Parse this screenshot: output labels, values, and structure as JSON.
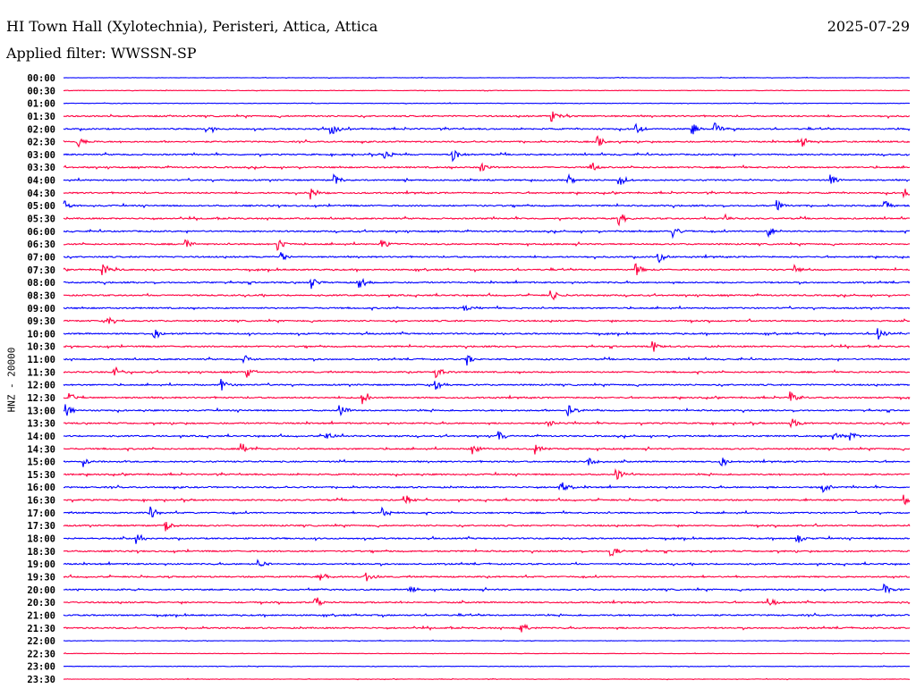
{
  "header": {
    "station": "HI Town Hall (Xylotechnia), Peristeri, Attica, Attica",
    "date": "2025-07-29",
    "filter": "Applied filter: WWSSN-SP"
  },
  "chart_data": {
    "type": "line",
    "title": "HI Town Hall (Xylotechnia), Peristeri, Attica, Attica",
    "ylabel": "HNZ - 20000",
    "xlabel": "",
    "row_minutes": 30,
    "colors": {
      "even": "#0000ff",
      "odd": "#ff0040"
    },
    "rows": [
      {
        "label": "00:00",
        "events": []
      },
      {
        "label": "00:30",
        "events": []
      },
      {
        "label": "01:00",
        "events": []
      },
      {
        "label": "01:30",
        "events": [
          17.3
        ]
      },
      {
        "label": "02:00",
        "events": [
          5.0,
          9.5,
          20.3,
          22.3,
          23.1
        ]
      },
      {
        "label": "02:30",
        "events": [
          0.5,
          18.9,
          26.2
        ]
      },
      {
        "label": "03:00",
        "events": [
          11.4,
          13.8
        ]
      },
      {
        "label": "03:30",
        "events": [
          14.8,
          18.7
        ]
      },
      {
        "label": "04:00",
        "events": [
          9.6,
          17.9,
          19.7,
          27.2
        ]
      },
      {
        "label": "04:30",
        "events": [
          8.8,
          29.8
        ]
      },
      {
        "label": "05:00",
        "events": [
          0.0,
          25.3,
          29.1
        ]
      },
      {
        "label": "05:30",
        "events": [
          19.7,
          23.4
        ]
      },
      {
        "label": "06:00",
        "events": [
          21.6,
          25.0
        ]
      },
      {
        "label": "06:30",
        "events": [
          4.3,
          7.6,
          11.3
        ]
      },
      {
        "label": "07:00",
        "events": [
          7.7,
          21.1
        ]
      },
      {
        "label": "07:30",
        "events": [
          1.4,
          20.3,
          25.9
        ]
      },
      {
        "label": "08:00",
        "events": [
          8.8,
          10.5
        ]
      },
      {
        "label": "08:30",
        "events": [
          17.3
        ]
      },
      {
        "label": "09:00",
        "events": [
          14.2
        ]
      },
      {
        "label": "09:30",
        "events": [
          1.6
        ]
      },
      {
        "label": "10:00",
        "events": [
          3.2,
          28.9
        ]
      },
      {
        "label": "10:30",
        "events": [
          20.9
        ]
      },
      {
        "label": "11:00",
        "events": [
          6.4,
          14.3
        ]
      },
      {
        "label": "11:30",
        "events": [
          1.8,
          6.5,
          13.2
        ]
      },
      {
        "label": "12:00",
        "events": [
          5.6,
          13.2
        ]
      },
      {
        "label": "12:30",
        "events": [
          0.2,
          10.6,
          25.8
        ]
      },
      {
        "label": "13:00",
        "events": [
          0.1,
          9.8,
          17.9
        ]
      },
      {
        "label": "13:30",
        "events": [
          17.1,
          25.8
        ]
      },
      {
        "label": "14:00",
        "events": [
          9.3,
          15.4,
          27.3,
          27.9
        ]
      },
      {
        "label": "14:30",
        "events": [
          6.3,
          14.5,
          16.7
        ]
      },
      {
        "label": "15:00",
        "events": [
          0.7,
          18.6,
          23.3
        ]
      },
      {
        "label": "15:30",
        "events": [
          19.6
        ]
      },
      {
        "label": "16:00",
        "events": [
          17.6,
          26.9
        ]
      },
      {
        "label": "16:30",
        "events": [
          12.1,
          29.8
        ]
      },
      {
        "label": "17:00",
        "events": [
          3.1,
          11.3
        ]
      },
      {
        "label": "17:30",
        "events": [
          3.6
        ]
      },
      {
        "label": "18:00",
        "events": [
          2.6,
          26.0
        ]
      },
      {
        "label": "18:30",
        "events": [
          19.4
        ]
      },
      {
        "label": "19:00",
        "events": [
          6.9
        ]
      },
      {
        "label": "19:30",
        "events": [
          9.1,
          10.7
        ]
      },
      {
        "label": "20:00",
        "events": [
          12.2,
          29.1
        ]
      },
      {
        "label": "20:30",
        "events": [
          8.9,
          25.0
        ]
      },
      {
        "label": "21:00",
        "events": []
      },
      {
        "label": "21:30",
        "events": [
          16.2
        ]
      },
      {
        "label": "22:00",
        "events": []
      },
      {
        "label": "22:30",
        "events": []
      },
      {
        "label": "23:00",
        "events": []
      },
      {
        "label": "23:30",
        "events": []
      }
    ]
  }
}
